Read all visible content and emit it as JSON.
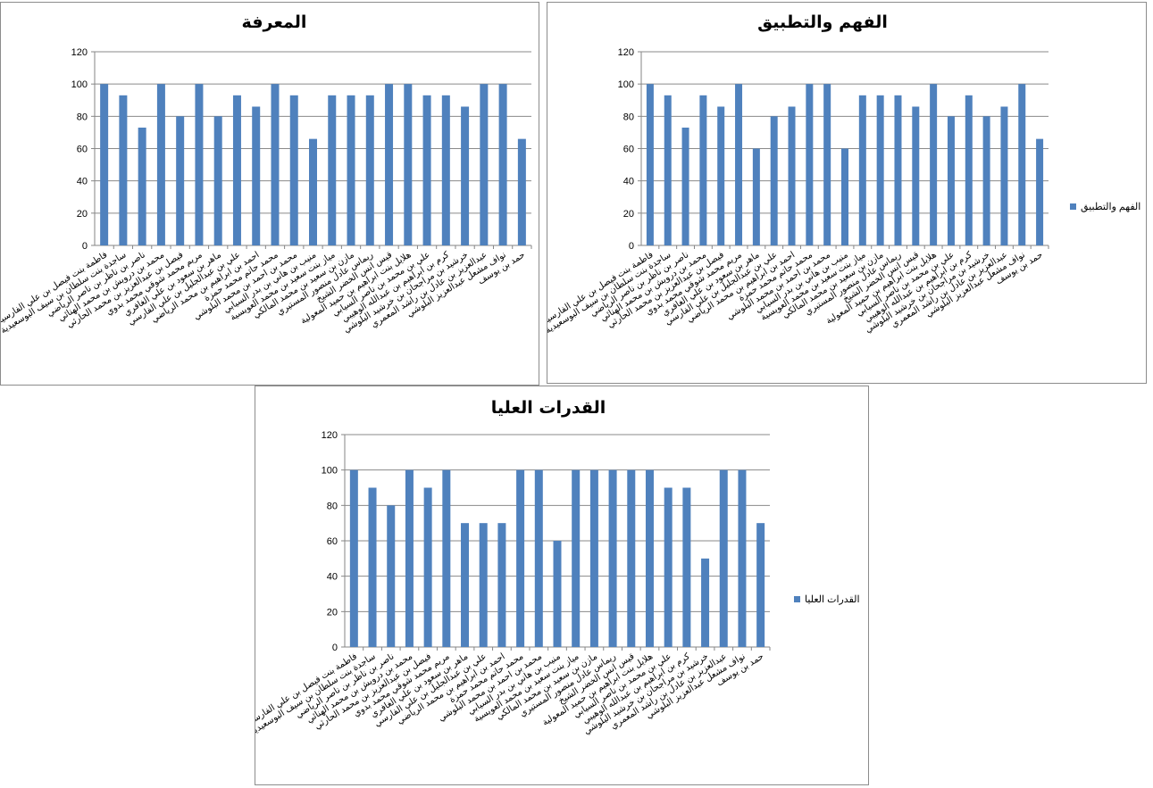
{
  "chart_data": [
    {
      "type": "bar",
      "title": "المعرفة",
      "color": "#4f81bd",
      "ylim": [
        0,
        120
      ],
      "yticks": [
        "0",
        "20",
        "40",
        "60",
        "80",
        "100",
        "120"
      ],
      "grid": true,
      "legend": null,
      "categories": [
        "فاطمة بنت فيصل بن علي الفارسية",
        "ساجدة بنت سلطان بن سيف البوسعيدية",
        "ناصر بن ناظر بن ناصر الرياضي",
        "محمد بن درويش بن محمد الهنائي",
        "فيصل بن عبدالعزيز بن محمد الحارثي",
        "مريم محمد شوقي محمد بدوي",
        "ماهر بن سعود بن علي الغافري",
        "علي بن عبدالجليل بن علي الفارسي",
        "احمد بن ابراهيم بن محمد الرياضي",
        "محمد حاتم محمد حمزة",
        "محمد بن احمد بن محمد البلوشي",
        "منيب بن هاني بن بدر السيابي",
        "مياز بنت سعيد بن محمد العويسية",
        "مازن بن سعيد بن محمد المالكي",
        "ريماس عادل منصور المستيري",
        "قيس انس الخضر الشيخ",
        "هلايل بنت ابراهيم بن حميد المعولية",
        "علي بن محمد بن ناصر السيابي",
        "كرم بن ابراهيم بن عبدالله الوهيبي",
        "خرشيد بن مراجحان بن خرشيد البلوشي",
        "عبدالعزيز بن عادل بن راشد المعمري",
        "نواف مشعل عبدالعزيز البلوشي",
        "حمد بن يوسف"
      ],
      "values": [
        100,
        93,
        73,
        100,
        80,
        100,
        80,
        93,
        86,
        100,
        93,
        66,
        93,
        93,
        93,
        100,
        100,
        93,
        93,
        86,
        100,
        100,
        66
      ]
    },
    {
      "type": "bar",
      "title": "الفهم والتطبيق",
      "color": "#4f81bd",
      "ylim": [
        0,
        120
      ],
      "yticks": [
        "0",
        "20",
        "40",
        "60",
        "80",
        "100",
        "120"
      ],
      "grid": true,
      "legend": "right",
      "series": [
        {
          "name": "الفهم والتطبيق"
        }
      ],
      "categories": [
        "فاطمة بنت فيصل بن علي الفارسية",
        "ساجدة بنت سلطان بن سيف البوسعيدية",
        "ناصر بن ناظر بن ناصر الرياضي",
        "محمد بن درويش بن محمد الهنائي",
        "فيصل بن عبدالعزيز بن محمد الحارثي",
        "مريم محمد شوقي محمد بدوي",
        "ماهر بن سعود بن علي الغافري",
        "علي بن عبدالجليل بن علي الفارسي",
        "احمد بن ابراهيم بن محمد الرياضي",
        "محمد حاتم محمد حمزة",
        "محمد بن احمد بن محمد البلوشي",
        "منيب بن هاني بن بدر السيابي",
        "مياز بنت سعيد بن محمد العويسية",
        "مازن بن سعيد بن محمد المالكي",
        "ريماس عادل منصور المستيري",
        "قيس انس الخضر الشيخ",
        "هلايل بنت ابراهيم بن حميد المعولية",
        "علي بن محمد بن ناصر السيابي",
        "كرم بن ابراهيم بن عبدالله الوهيبي",
        "خرشيد بن مراجحان بن خرشيد البلوشي",
        "عبدالعزيز بن عادل بن راشد المعمري",
        "نواف مشعل عبدالعزيز البلوشي",
        "حمد بن يوسف"
      ],
      "values": [
        100,
        93,
        73,
        93,
        86,
        100,
        60,
        80,
        86,
        100,
        100,
        60,
        93,
        93,
        93,
        86,
        100,
        80,
        93,
        80,
        86,
        100,
        66
      ]
    },
    {
      "type": "bar",
      "title": "القدرات العليا",
      "color": "#4f81bd",
      "ylim": [
        0,
        120
      ],
      "yticks": [
        "0",
        "20",
        "40",
        "60",
        "80",
        "100",
        "120"
      ],
      "grid": true,
      "legend": "right",
      "series": [
        {
          "name": "القدرات العليا"
        }
      ],
      "categories": [
        "فاطمة بنت فيصل بن علي الفارسية",
        "ساجدة بنت سلطان بن سيف البوسعيدية",
        "ناصر بن ناظر بن ناصر الرياضي",
        "محمد بن درويش بن محمد الهنائي",
        "فيصل بن عبدالعزيز بن محمد الحارثي",
        "مريم محمد شوقي محمد بدوي",
        "ماهر بن سعود بن علي الغافري",
        "علي بن عبدالجليل بن علي الفارسي",
        "احمد بن ابراهيم بن محمد الرياضي",
        "محمد حاتم محمد حمزة",
        "محمد بن احمد بن محمد البلوشي",
        "منيب بن هاني بن بدر السيابي",
        "مياز بنت سعيد بن محمد العويسية",
        "مازن بن سعيد بن محمد المالكي",
        "ريماس عادل منصور المستيري",
        "قيس انس الخضر الشيخ",
        "هلايل بنت ابراهيم بن حميد المعولية",
        "علي بن محمد بن ناصر السيابي",
        "كرم بن ابراهيم بن عبدالله الوهيبي",
        "خرشيد بن مراجحان بن خرشيد البلوشي",
        "عبدالعزيز بن عادل بن راشد المعمري",
        "نواف مشعل عبدالعزيز البلوشي",
        "حمد بن يوسف"
      ],
      "values": [
        100,
        90,
        80,
        100,
        90,
        100,
        70,
        70,
        70,
        100,
        100,
        60,
        100,
        100,
        100,
        100,
        100,
        90,
        90,
        50,
        100,
        100,
        70
      ]
    }
  ]
}
